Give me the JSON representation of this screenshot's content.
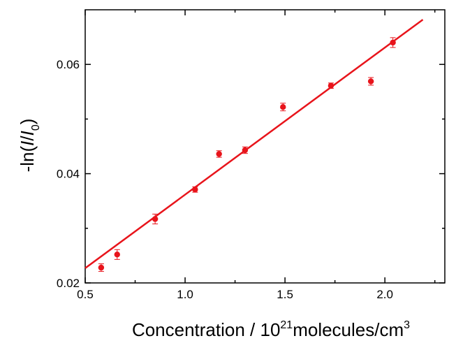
{
  "chart_data": {
    "type": "scatter",
    "title": "",
    "xlabel": {
      "prefix": "Concentration / 10",
      "sup1": "21",
      "middle": "molecules/cm",
      "sup2": "3"
    },
    "ylabel": {
      "prefix": "-ln(",
      "italic1": "I",
      "slash": "/",
      "italic2": "I",
      "sub": "0",
      "suffix": ")"
    },
    "xlim": [
      0.5,
      2.3
    ],
    "ylim": [
      0.02,
      0.07
    ],
    "x_ticks": [
      {
        "value": 0.5,
        "label": "0.5"
      },
      {
        "value": 1.0,
        "label": "1.0"
      },
      {
        "value": 1.5,
        "label": "1.5"
      },
      {
        "value": 2.0,
        "label": "2.0"
      }
    ],
    "x_minor_ticks": [
      0.75,
      1.25,
      1.75,
      2.25
    ],
    "y_ticks": [
      {
        "value": 0.02,
        "label": "0.02"
      },
      {
        "value": 0.04,
        "label": "0.04"
      },
      {
        "value": 0.06,
        "label": "0.06"
      }
    ],
    "y_minor_ticks": [
      0.03,
      0.05
    ],
    "grid": false,
    "color": "#e8141b",
    "series": [
      {
        "type": "scatter",
        "x": [
          0.58,
          0.66,
          0.85,
          1.05,
          1.17,
          1.3,
          1.49,
          1.73,
          1.93,
          2.04
        ],
        "y": [
          0.0228,
          0.0252,
          0.0317,
          0.0371,
          0.0436,
          0.0443,
          0.0522,
          0.0561,
          0.0569,
          0.064
        ],
        "err": [
          0.0007,
          0.0009,
          0.0009,
          0.0005,
          0.0006,
          0.0006,
          0.0007,
          0.0005,
          0.0007,
          0.0009
        ]
      },
      {
        "type": "line",
        "fit": "linear",
        "x": [
          0.5,
          2.19
        ],
        "y": [
          0.0227,
          0.0682
        ]
      }
    ]
  }
}
